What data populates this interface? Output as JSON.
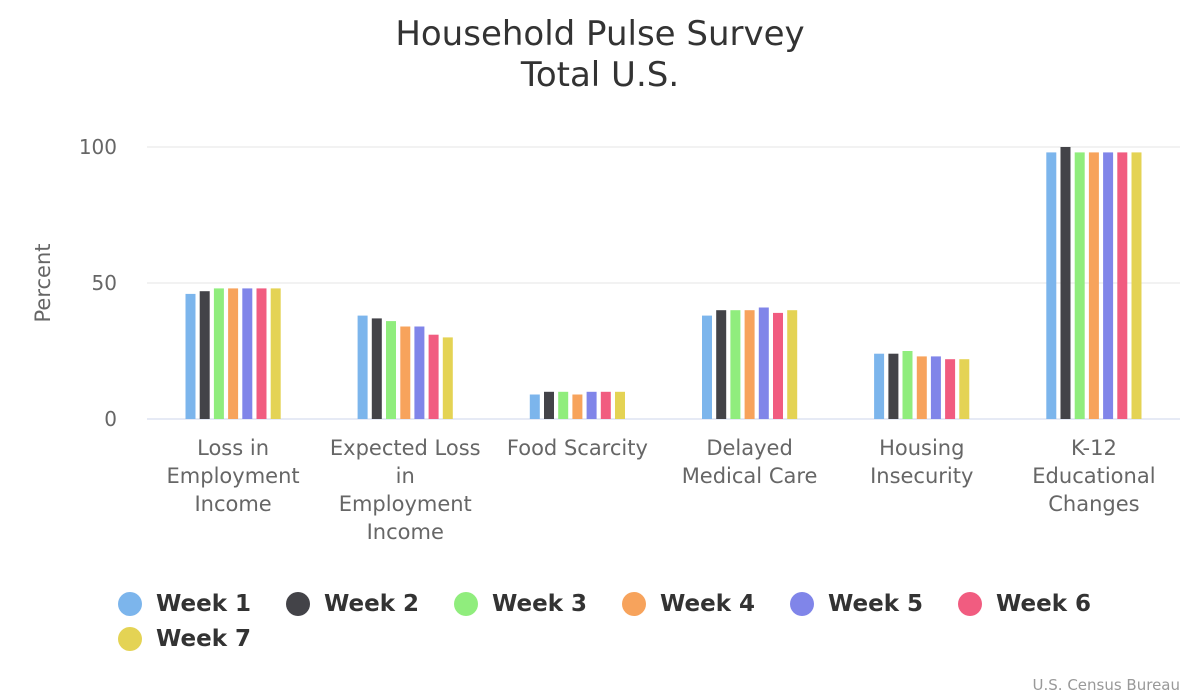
{
  "chart_data": {
    "type": "bar",
    "title_lines": [
      "Household Pulse Survey",
      "Total U.S."
    ],
    "ylabel": "Percent",
    "xlabel": "",
    "ylim": [
      0,
      100
    ],
    "yticks": [
      0,
      50,
      100
    ],
    "grid": true,
    "legend_position": "bottom-left",
    "categories": [
      "Loss in Employment Income",
      "Expected Loss in Employment Income",
      "Food Scarcity",
      "Delayed Medical Care",
      "Housing Insecurity",
      "K-12 Educational Changes"
    ],
    "series": [
      {
        "name": "Week 1",
        "color": "#7cb5ec",
        "values": [
          46,
          38,
          9,
          38,
          24,
          98
        ]
      },
      {
        "name": "Week 2",
        "color": "#434348",
        "values": [
          47,
          37,
          10,
          40,
          24,
          100
        ]
      },
      {
        "name": "Week 3",
        "color": "#90ed7d",
        "values": [
          48,
          36,
          10,
          40,
          25,
          98
        ]
      },
      {
        "name": "Week 4",
        "color": "#f7a35c",
        "values": [
          48,
          34,
          9,
          40,
          23,
          98
        ]
      },
      {
        "name": "Week 5",
        "color": "#8085e9",
        "values": [
          48,
          34,
          10,
          41,
          23,
          98
        ]
      },
      {
        "name": "Week 6",
        "color": "#f15c80",
        "values": [
          48,
          31,
          10,
          39,
          22,
          98
        ]
      },
      {
        "name": "Week 7",
        "color": "#e4d354",
        "values": [
          48,
          30,
          10,
          40,
          22,
          98
        ]
      }
    ]
  },
  "credits": "U.S. Census Bureau"
}
